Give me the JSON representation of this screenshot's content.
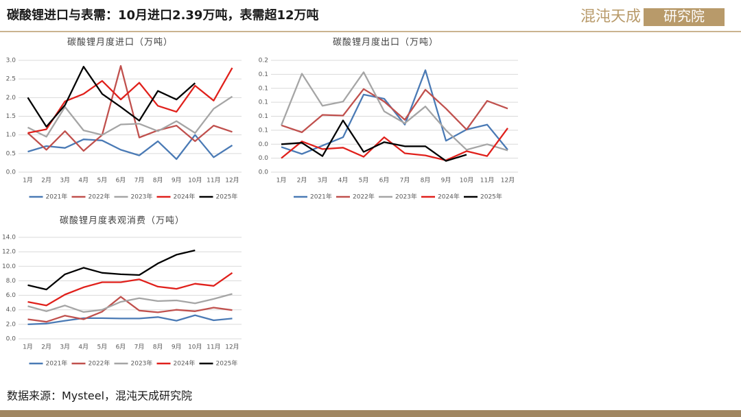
{
  "header": {
    "title": "碳酸锂进口与表需：10月进口2.39万吨，表需超12万吨"
  },
  "logo": {
    "name": "混沌天成",
    "tag": "研究院"
  },
  "source": "数据来源：Mysteel，混沌天成研究院",
  "chart_data": [
    {
      "type": "line",
      "title": "碳酸锂月度进口（万吨）",
      "categories": [
        "1月",
        "2月",
        "3月",
        "4月",
        "5月",
        "6月",
        "7月",
        "8月",
        "9月",
        "10月",
        "11月",
        "12月"
      ],
      "ylim": [
        0,
        3
      ],
      "yticks": [
        {
          "value": 0,
          "label": "0.0"
        },
        0.5,
        {
          "value": 1,
          "label": "1.0"
        },
        1.5,
        {
          "value": 2,
          "label": "2.0"
        },
        2.5,
        {
          "value": 3,
          "label": "3.0"
        }
      ],
      "grid": true,
      "legend": "bottom",
      "series": [
        {
          "name": "2021年",
          "color": "#4a7ab5",
          "values": [
            0.55,
            0.7,
            0.65,
            0.88,
            0.85,
            0.6,
            0.45,
            0.83,
            0.35,
            1.0,
            0.4,
            0.72
          ]
        },
        {
          "name": "2022年",
          "color": "#c0504d",
          "values": [
            1.05,
            0.6,
            1.1,
            0.57,
            1.0,
            2.85,
            0.93,
            1.12,
            1.25,
            0.83,
            1.25,
            1.08
          ]
        },
        {
          "name": "2023年",
          "color": "#a5a5a5",
          "values": [
            1.2,
            0.95,
            1.75,
            1.12,
            1.0,
            1.28,
            1.3,
            1.1,
            1.37,
            1.05,
            1.7,
            2.03
          ]
        },
        {
          "name": "2024年",
          "color": "#e0201b",
          "values": [
            1.05,
            1.15,
            1.9,
            2.1,
            2.45,
            1.95,
            2.4,
            1.78,
            1.62,
            2.32,
            1.92,
            2.8
          ]
        },
        {
          "name": "2025年",
          "color": "#000000",
          "values": [
            2.0,
            1.22,
            1.8,
            2.83,
            2.1,
            1.75,
            1.38,
            2.18,
            1.95,
            2.39,
            null,
            null
          ]
        }
      ]
    },
    {
      "type": "line",
      "title": "碳酸锂月度出口（万吨）",
      "categories": [
        "1月",
        "2月",
        "3月",
        "4月",
        "5月",
        "6月",
        "7月",
        "8月",
        "9月",
        "10月",
        "11月",
        "12月"
      ],
      "ylim": [
        0,
        0.16
      ],
      "yticks": [
        {
          "value": 0,
          "label": "0.0"
        },
        {
          "value": 0.02,
          "label": "0.0"
        },
        {
          "value": 0.04,
          "label": "0.0"
        },
        {
          "value": 0.06,
          "label": "0.1"
        },
        {
          "value": 0.08,
          "label": "0.1"
        },
        {
          "value": 0.1,
          "label": "0.1"
        },
        {
          "value": 0.12,
          "label": "0.1"
        },
        {
          "value": 0.14,
          "label": "0.1"
        },
        {
          "value": 0.16,
          "label": "0.2"
        }
      ],
      "grid": true,
      "legend": "bottom",
      "series": [
        {
          "name": "2021年",
          "color": "#4a7ab5",
          "values": [
            0.036,
            0.026,
            0.038,
            0.05,
            0.111,
            0.105,
            0.068,
            0.146,
            0.045,
            0.061,
            0.068,
            0.032
          ]
        },
        {
          "name": "2022年",
          "color": "#c0504d",
          "values": [
            0.067,
            0.057,
            0.082,
            0.081,
            0.119,
            0.101,
            0.075,
            0.118,
            0.091,
            0.061,
            0.102,
            0.091
          ]
        },
        {
          "name": "2023年",
          "color": "#a5a5a5",
          "values": [
            0.067,
            0.141,
            0.095,
            0.101,
            0.143,
            0.087,
            0.07,
            0.094,
            0.06,
            0.032,
            0.04,
            0.031
          ]
        },
        {
          "name": "2024年",
          "color": "#e0201b",
          "values": [
            0.02,
            0.044,
            0.033,
            0.035,
            0.022,
            0.05,
            0.027,
            0.024,
            0.017,
            0.03,
            0.023,
            0.063
          ]
        },
        {
          "name": "2025年",
          "color": "#000000",
          "values": [
            0.04,
            0.042,
            0.023,
            0.074,
            0.029,
            0.043,
            0.037,
            0.037,
            0.016,
            0.025,
            null,
            null
          ]
        }
      ]
    },
    {
      "type": "line",
      "title": "碳酸锂月度表观消费（万吨）",
      "categories": [
        "1月",
        "2月",
        "3月",
        "4月",
        "5月",
        "6月",
        "7月",
        "8月",
        "9月",
        "10月",
        "11月",
        "12月"
      ],
      "ylim": [
        0,
        14
      ],
      "yticks": [
        {
          "value": 0,
          "label": "0.0"
        },
        {
          "value": 2,
          "label": "2.0"
        },
        {
          "value": 4,
          "label": "4.0"
        },
        {
          "value": 6,
          "label": "6.0"
        },
        {
          "value": 8,
          "label": "8.0"
        },
        {
          "value": 10,
          "label": "10.0"
        },
        {
          "value": 12,
          "label": "12.0"
        },
        {
          "value": 14,
          "label": "14.0"
        }
      ],
      "grid": true,
      "legend": "bottom",
      "series": [
        {
          "name": "2021年",
          "color": "#4a7ab5",
          "values": [
            2.0,
            2.1,
            2.5,
            2.85,
            2.85,
            2.8,
            2.8,
            3.0,
            2.5,
            3.25,
            2.55,
            2.8
          ]
        },
        {
          "name": "2022年",
          "color": "#c0504d",
          "values": [
            2.7,
            2.35,
            3.2,
            2.7,
            3.75,
            5.8,
            3.9,
            3.65,
            4.0,
            3.8,
            4.3,
            3.95
          ]
        },
        {
          "name": "2023年",
          "color": "#a5a5a5",
          "values": [
            4.5,
            3.8,
            4.6,
            3.7,
            4.0,
            5.1,
            5.6,
            5.2,
            5.3,
            4.9,
            5.5,
            6.2
          ]
        },
        {
          "name": "2024年",
          "color": "#e0201b",
          "values": [
            5.1,
            4.6,
            6.1,
            7.1,
            7.8,
            7.8,
            8.2,
            7.2,
            6.9,
            7.6,
            7.3,
            9.1
          ]
        },
        {
          "name": "2025年",
          "color": "#000000",
          "values": [
            7.4,
            6.8,
            8.9,
            9.8,
            9.1,
            8.9,
            8.8,
            10.4,
            11.6,
            12.2,
            null,
            null
          ]
        }
      ]
    }
  ]
}
